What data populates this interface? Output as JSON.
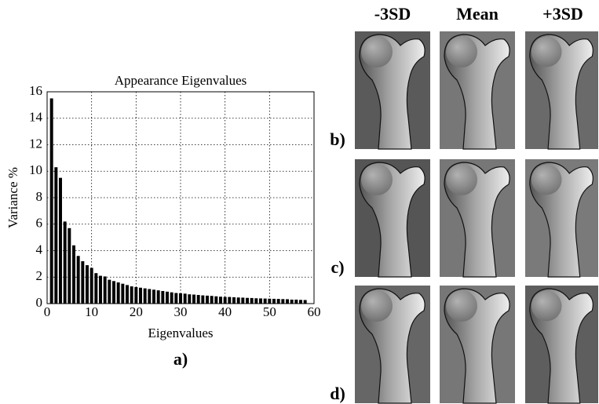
{
  "chart_data": {
    "type": "bar",
    "title": "Appearance Eigenvalues",
    "x_label": "Eigenvalues",
    "y_label": "Variance %",
    "caption": "a)",
    "x": [
      1,
      2,
      3,
      4,
      5,
      6,
      7,
      8,
      9,
      10,
      11,
      12,
      13,
      14,
      15,
      16,
      17,
      18,
      19,
      20,
      21,
      22,
      23,
      24,
      25,
      26,
      27,
      28,
      29,
      30,
      31,
      32,
      33,
      34,
      35,
      36,
      37,
      38,
      39,
      40,
      41,
      42,
      43,
      44,
      45,
      46,
      47,
      48,
      49,
      50,
      51,
      52,
      53,
      54,
      55,
      56,
      57,
      58
    ],
    "values": [
      15.5,
      10.3,
      9.5,
      6.2,
      5.7,
      4.4,
      3.6,
      3.2,
      2.9,
      2.7,
      2.3,
      2.1,
      2.05,
      1.8,
      1.7,
      1.6,
      1.5,
      1.4,
      1.3,
      1.25,
      1.2,
      1.15,
      1.1,
      1.05,
      1.0,
      0.95,
      0.9,
      0.85,
      0.8,
      0.78,
      0.75,
      0.7,
      0.68,
      0.65,
      0.62,
      0.6,
      0.58,
      0.55,
      0.52,
      0.5,
      0.5,
      0.48,
      0.46,
      0.45,
      0.43,
      0.42,
      0.4,
      0.39,
      0.38,
      0.37,
      0.36,
      0.35,
      0.34,
      0.33,
      0.3,
      0.3,
      0.28,
      0.27
    ],
    "color": "#000000",
    "xlim": [
      0,
      60
    ],
    "ylim": [
      0,
      16
    ],
    "xticks": [
      0,
      10,
      20,
      30,
      40,
      50,
      60
    ],
    "yticks": [
      0,
      2,
      4,
      6,
      8,
      10,
      12,
      14,
      16
    ],
    "grid": true
  },
  "image_grid": {
    "columns": [
      "-3SD",
      "Mean",
      "+3SD"
    ],
    "rows": [
      "b)",
      "c)",
      "d)"
    ]
  }
}
